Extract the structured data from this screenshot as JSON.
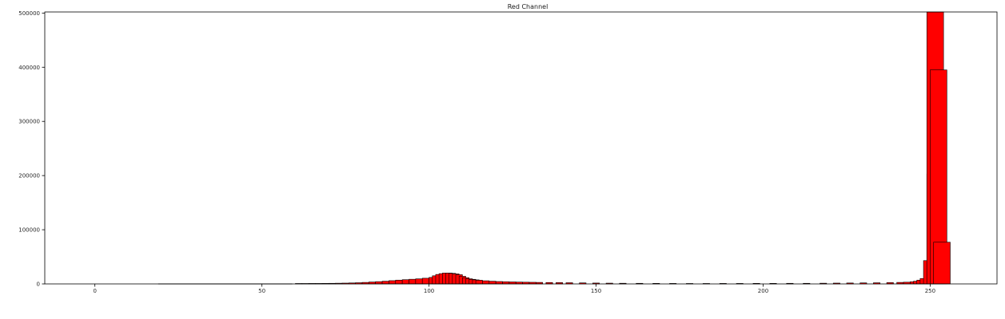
{
  "chart_data": {
    "type": "bar",
    "title": "Red Channel",
    "xlabel": "",
    "ylabel": "",
    "xlim": [
      -15,
      270
    ],
    "ylim": [
      0,
      502000
    ],
    "x_ticks": [
      0,
      50,
      100,
      150,
      200,
      250
    ],
    "y_ticks": [
      0,
      100000,
      200000,
      300000,
      400000,
      500000
    ],
    "grid": false,
    "legend": "none",
    "bar_color": "#ff0000",
    "edge_color": "#000000",
    "series": [
      {
        "bars": [
          {
            "x": 20,
            "value": 300
          },
          {
            "x": 22,
            "value": 300
          },
          {
            "x": 24,
            "value": 300
          },
          {
            "x": 26,
            "value": 300
          },
          {
            "x": 28,
            "value": 300
          },
          {
            "x": 30,
            "value": 300
          },
          {
            "x": 32,
            "value": 300
          },
          {
            "x": 34,
            "value": 300
          },
          {
            "x": 36,
            "value": 300
          },
          {
            "x": 38,
            "value": 300
          },
          {
            "x": 40,
            "value": 300
          },
          {
            "x": 42,
            "value": 300
          },
          {
            "x": 44,
            "value": 300
          },
          {
            "x": 46,
            "value": 300
          },
          {
            "x": 48,
            "value": 300
          },
          {
            "x": 50,
            "value": 300
          },
          {
            "x": 52,
            "value": 300
          },
          {
            "x": 54,
            "value": 300
          },
          {
            "x": 56,
            "value": 300
          },
          {
            "x": 58,
            "value": 300
          },
          {
            "x": 61,
            "value": 800
          },
          {
            "x": 63,
            "value": 800
          },
          {
            "x": 65,
            "value": 900
          },
          {
            "x": 67,
            "value": 900
          },
          {
            "x": 69,
            "value": 1000
          },
          {
            "x": 71,
            "value": 1100
          },
          {
            "x": 73,
            "value": 1300
          },
          {
            "x": 75,
            "value": 1500
          },
          {
            "x": 77,
            "value": 1800
          },
          {
            "x": 79,
            "value": 2200
          },
          {
            "x": 81,
            "value": 2800
          },
          {
            "x": 83,
            "value": 3500
          },
          {
            "x": 85,
            "value": 4200
          },
          {
            "x": 87,
            "value": 5000
          },
          {
            "x": 89,
            "value": 6000
          },
          {
            "x": 91,
            "value": 7000
          },
          {
            "x": 93,
            "value": 7800
          },
          {
            "x": 95,
            "value": 8600
          },
          {
            "x": 97,
            "value": 9400
          },
          {
            "x": 99,
            "value": 10500
          },
          {
            "x": 101,
            "value": 12000
          },
          {
            "x": 102,
            "value": 15000
          },
          {
            "x": 103,
            "value": 17500
          },
          {
            "x": 104,
            "value": 19000
          },
          {
            "x": 105,
            "value": 20000
          },
          {
            "x": 106,
            "value": 20000
          },
          {
            "x": 107,
            "value": 19500
          },
          {
            "x": 108,
            "value": 18500
          },
          {
            "x": 109,
            "value": 17000
          },
          {
            "x": 110,
            "value": 14000
          },
          {
            "x": 111,
            "value": 11500
          },
          {
            "x": 112,
            "value": 9500
          },
          {
            "x": 113,
            "value": 8500
          },
          {
            "x": 114,
            "value": 7500
          },
          {
            "x": 115,
            "value": 6800
          },
          {
            "x": 117,
            "value": 5800
          },
          {
            "x": 119,
            "value": 5000
          },
          {
            "x": 121,
            "value": 4400
          },
          {
            "x": 123,
            "value": 4000
          },
          {
            "x": 125,
            "value": 3700
          },
          {
            "x": 127,
            "value": 3400
          },
          {
            "x": 129,
            "value": 3200
          },
          {
            "x": 131,
            "value": 3000
          },
          {
            "x": 133,
            "value": 2800
          },
          {
            "x": 136,
            "value": 2600
          },
          {
            "x": 139,
            "value": 2400
          },
          {
            "x": 142,
            "value": 2200
          },
          {
            "x": 146,
            "value": 1900
          },
          {
            "x": 150,
            "value": 1600
          },
          {
            "x": 154,
            "value": 1400
          },
          {
            "x": 158,
            "value": 1200
          },
          {
            "x": 163,
            "value": 1100
          },
          {
            "x": 168,
            "value": 1000
          },
          {
            "x": 173,
            "value": 900
          },
          {
            "x": 178,
            "value": 800
          },
          {
            "x": 183,
            "value": 800
          },
          {
            "x": 188,
            "value": 900
          },
          {
            "x": 193,
            "value": 900
          },
          {
            "x": 198,
            "value": 1000
          },
          {
            "x": 203,
            "value": 1000
          },
          {
            "x": 208,
            "value": 1100
          },
          {
            "x": 213,
            "value": 1100
          },
          {
            "x": 218,
            "value": 1300
          },
          {
            "x": 222,
            "value": 1500
          },
          {
            "x": 226,
            "value": 1700
          },
          {
            "x": 230,
            "value": 1900
          },
          {
            "x": 234,
            "value": 2100
          },
          {
            "x": 238,
            "value": 2400
          },
          {
            "x": 241,
            "value": 2800
          },
          {
            "x": 243,
            "value": 3200
          },
          {
            "x": 245,
            "value": 4000
          },
          {
            "x": 246,
            "value": 5000
          },
          {
            "x": 247,
            "value": 7000
          },
          {
            "x": 248,
            "value": 10000
          },
          {
            "x": 249,
            "value": 43000
          },
          {
            "x": 250,
            "value": 203000
          },
          {
            "x": 251.5,
            "value": 502000,
            "width": 5
          },
          {
            "x": 252.5,
            "value": 395000,
            "width": 5
          },
          {
            "x": 253.5,
            "value": 77000,
            "width": 5
          }
        ]
      }
    ]
  }
}
